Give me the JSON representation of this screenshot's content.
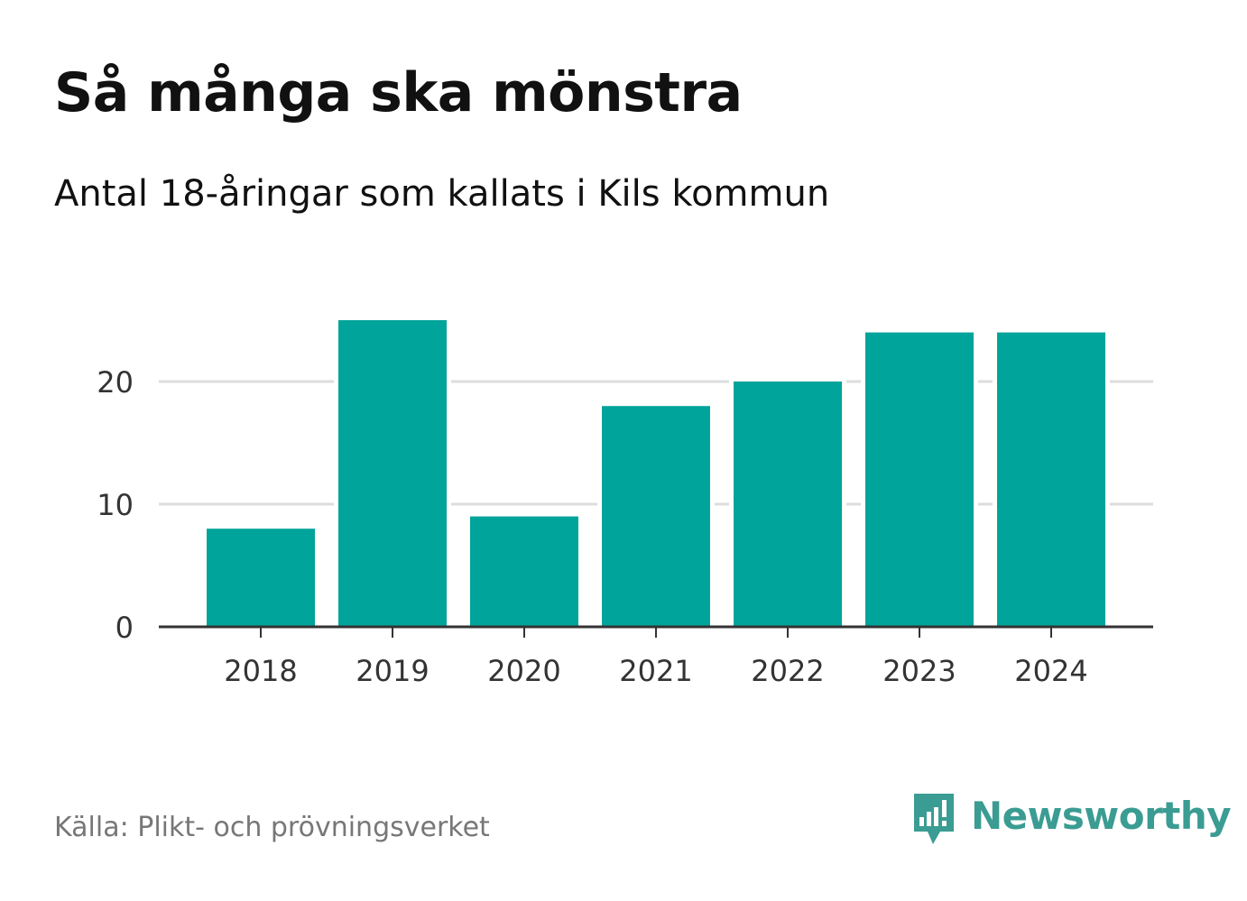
{
  "header": {
    "title": "Så många ska mönstra",
    "subtitle": "Antal 18-åringar som kallats i Kils kommun"
  },
  "footer": {
    "source": "Källa: Plikt- och prövningsverket",
    "brand": "Newsworthy",
    "brand_icon": "newsworthy-logo-icon"
  },
  "colors": {
    "bar": "#00a49a",
    "grid": "#dddddd",
    "axis": "#333333",
    "brand": "#3a9c92"
  },
  "chart_data": {
    "type": "bar",
    "title": "Så många ska mönstra",
    "subtitle": "Antal 18-åringar som kallats i Kils kommun",
    "categories": [
      "2018",
      "2019",
      "2020",
      "2021",
      "2022",
      "2023",
      "2024"
    ],
    "values": [
      8,
      25,
      9,
      18,
      20,
      24,
      24
    ],
    "yticks": [
      0,
      10,
      20
    ],
    "ylim": [
      0,
      29
    ],
    "xlabel": "",
    "ylabel": "",
    "grid": true,
    "legend": "none"
  }
}
